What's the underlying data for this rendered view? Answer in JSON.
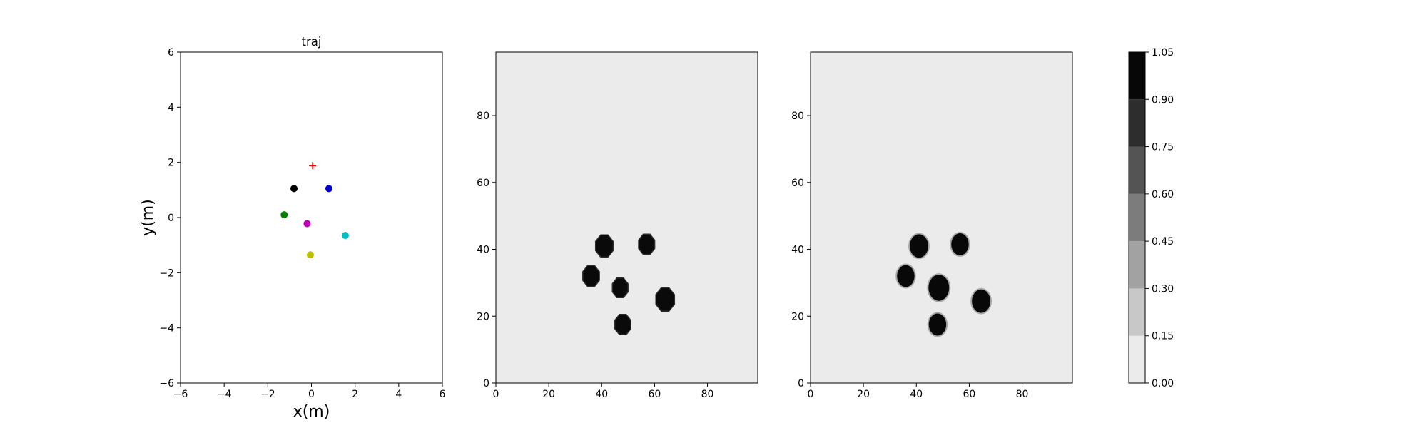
{
  "chart_data": [
    {
      "type": "scatter",
      "title": "traj",
      "xlabel": "x(m)",
      "ylabel": "y(m)",
      "xlim": [
        -6,
        6
      ],
      "ylim": [
        -6,
        6
      ],
      "xticks": [
        "−6",
        "−4",
        "−2",
        "0",
        "2",
        "4",
        "6"
      ],
      "yticks": [
        "−6",
        "−4",
        "−2",
        "0",
        "2",
        "4",
        "6"
      ],
      "grid": false,
      "points": [
        {
          "x": -0.8,
          "y": 1.05,
          "color": "#000000",
          "marker": "circle"
        },
        {
          "x": 0.8,
          "y": 1.05,
          "color": "#0000cc",
          "marker": "circle"
        },
        {
          "x": -1.25,
          "y": 0.1,
          "color": "#008000",
          "marker": "circle"
        },
        {
          "x": -0.2,
          "y": -0.22,
          "color": "#bf00bf",
          "marker": "circle"
        },
        {
          "x": 1.55,
          "y": -0.65,
          "color": "#00bfbf",
          "marker": "circle"
        },
        {
          "x": -0.05,
          "y": -1.35,
          "color": "#bfbf00",
          "marker": "circle"
        },
        {
          "x": 0.05,
          "y": 1.88,
          "color": "#ff0000",
          "marker": "plus"
        }
      ]
    },
    {
      "type": "heatmap",
      "xlim": [
        0,
        99
      ],
      "ylim": [
        0,
        99
      ],
      "xticks": [
        "0",
        "20",
        "40",
        "60",
        "80"
      ],
      "yticks": [
        "0",
        "20",
        "40",
        "60",
        "80"
      ],
      "background_value": 0.0,
      "blob_shape": "octagon",
      "blobs": [
        {
          "x": 41,
          "y": 41,
          "r": 3.6,
          "value": 1.0
        },
        {
          "x": 57,
          "y": 41.5,
          "r": 3.3,
          "value": 1.0
        },
        {
          "x": 36,
          "y": 32,
          "r": 3.4,
          "value": 1.0
        },
        {
          "x": 47,
          "y": 28.5,
          "r": 3.2,
          "value": 1.0
        },
        {
          "x": 64,
          "y": 25,
          "r": 3.8,
          "value": 1.0
        },
        {
          "x": 48,
          "y": 17.5,
          "r": 3.3,
          "value": 1.0
        }
      ]
    },
    {
      "type": "heatmap",
      "xlim": [
        0,
        99
      ],
      "ylim": [
        0,
        99
      ],
      "xticks": [
        "0",
        "20",
        "40",
        "60",
        "80"
      ],
      "yticks": [
        "0",
        "20",
        "40",
        "60",
        "80"
      ],
      "background_value": 0.0,
      "blob_shape": "circle",
      "blobs": [
        {
          "x": 41,
          "y": 41,
          "r": 3.5,
          "value": 1.0
        },
        {
          "x": 56.5,
          "y": 41.5,
          "r": 3.3,
          "value": 1.0
        },
        {
          "x": 36,
          "y": 32,
          "r": 3.3,
          "value": 1.0
        },
        {
          "x": 48.5,
          "y": 28.5,
          "r": 3.9,
          "value": 1.0
        },
        {
          "x": 64.5,
          "y": 24.5,
          "r": 3.5,
          "value": 1.0
        },
        {
          "x": 48,
          "y": 17.5,
          "r": 3.3,
          "value": 1.0
        }
      ]
    },
    {
      "type": "colorbar",
      "levels": [
        0.0,
        0.15,
        0.3,
        0.45,
        0.6,
        0.75,
        0.9,
        1.05
      ],
      "tick_labels": [
        "0.00",
        "0.15",
        "0.30",
        "0.45",
        "0.60",
        "0.75",
        "0.90",
        "1.05"
      ],
      "colors": [
        "#ebebeb",
        "#c8c8c8",
        "#a2a2a2",
        "#7c7c7c",
        "#545454",
        "#2d2d2d",
        "#070707"
      ]
    }
  ]
}
